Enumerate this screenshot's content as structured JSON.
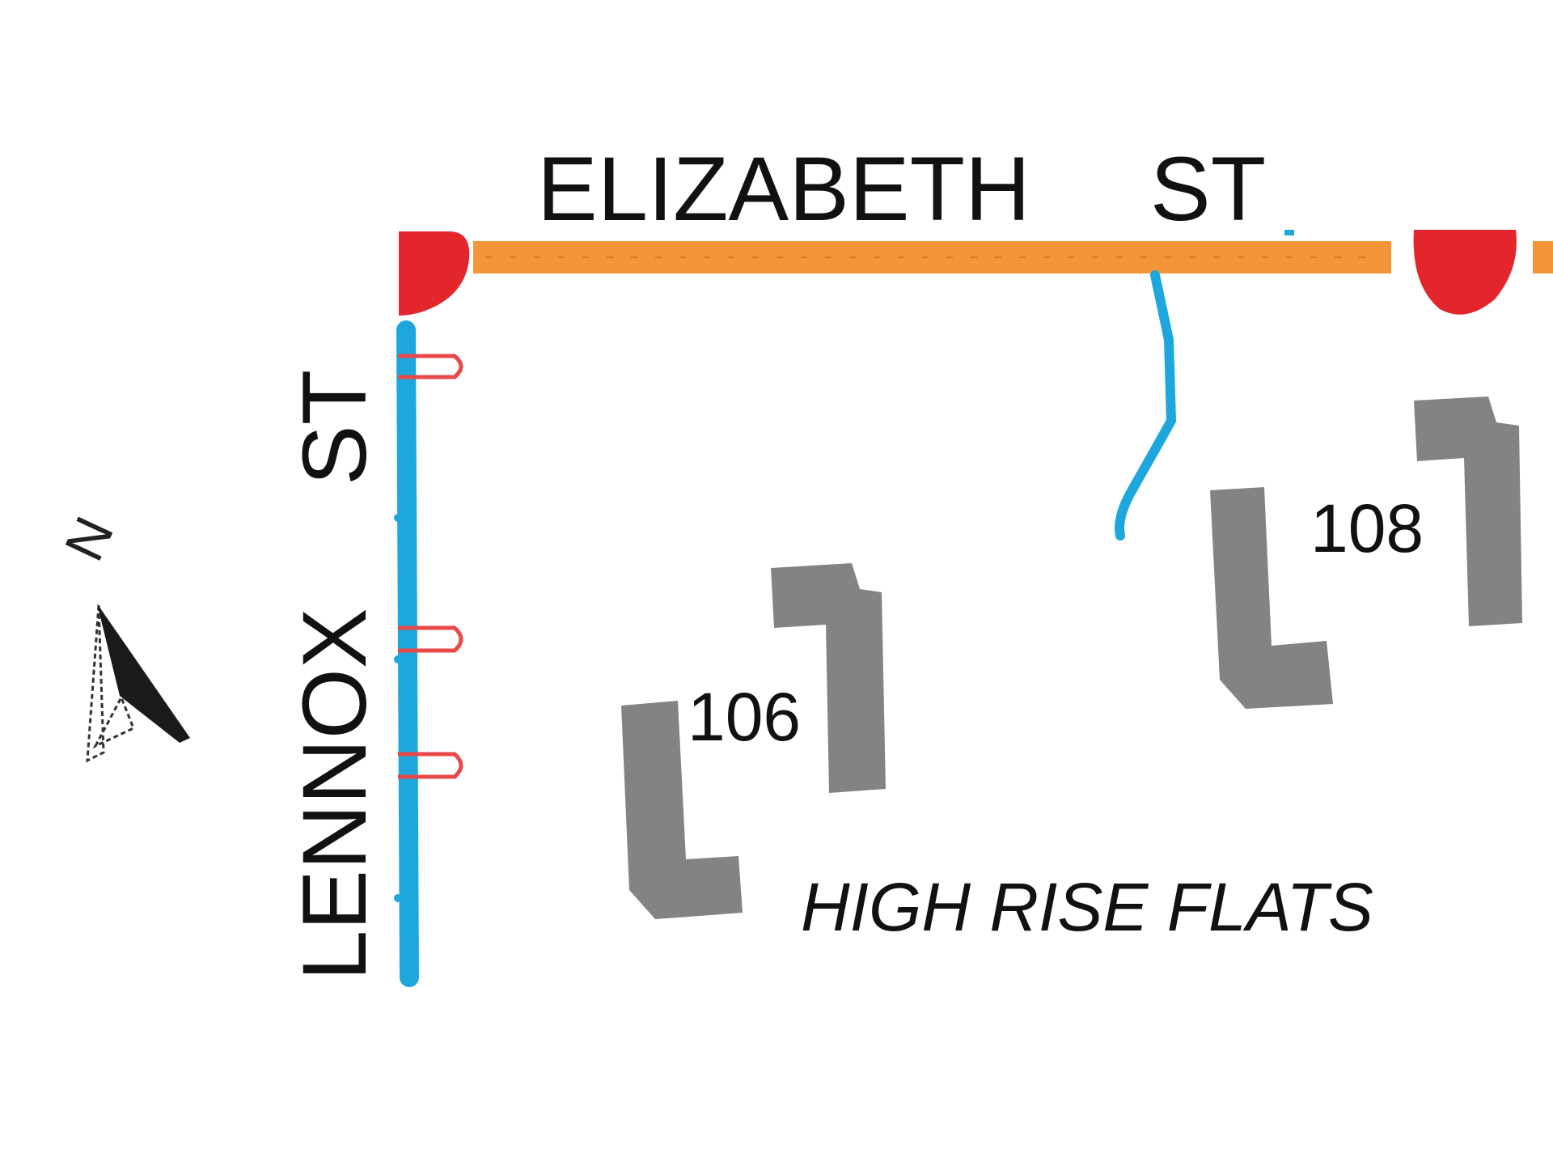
{
  "colors": {
    "road_major": "#f5953a",
    "road_minor": "#1ea7dd",
    "node": "#e3262b",
    "building": "#838383",
    "label": "#111111"
  },
  "streets": {
    "horizontal": {
      "name": "ELIZABETH",
      "suffix": "ST"
    },
    "vertical": {
      "name": "LENNOX",
      "suffix": "ST"
    }
  },
  "buildings": {
    "left_number": "106",
    "right_number": "108"
  },
  "area_label": "HIGH RISE FLATS",
  "north_arrow": {
    "letter": "N",
    "icon": "north-arrow-icon"
  }
}
